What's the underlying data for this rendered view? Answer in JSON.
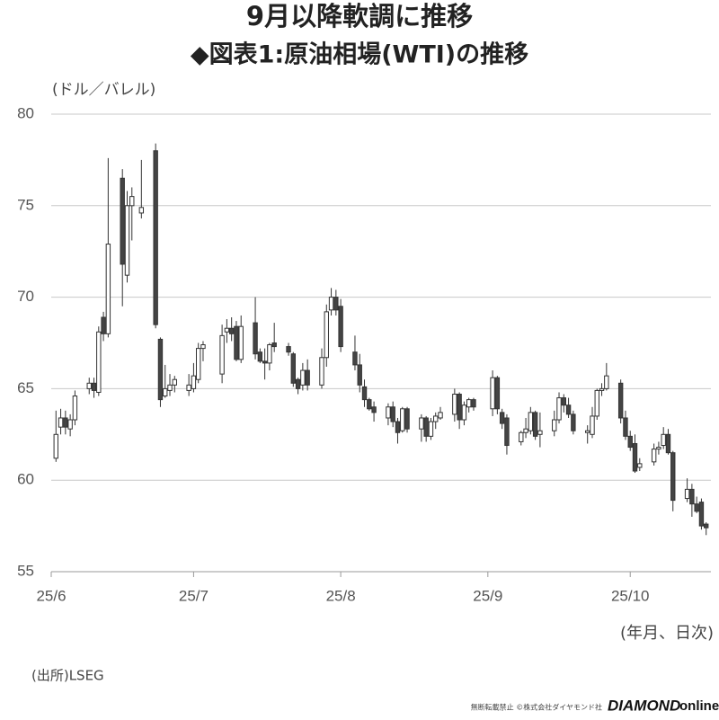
{
  "chart_data": {
    "type": "candlestick",
    "title": "9月以降軟調に推移",
    "subtitle": "◆図表1:原油相場(WTI)の推移",
    "y_label": "(ドル／バレル)",
    "x_label": "(年月、日次)",
    "source": "(出所)LSEG",
    "notice": "無断転載禁止 ©株式会社ダイヤモンド社",
    "brand": [
      "DIAMOND",
      "online"
    ],
    "ylim": [
      55,
      80
    ],
    "yticks": [
      55,
      60,
      65,
      70,
      75,
      80
    ],
    "grid": true,
    "xlim": [
      0,
      139
    ],
    "xticks": [
      {
        "value": 0,
        "label": "25/6"
      },
      {
        "value": 30,
        "label": "25/7"
      },
      {
        "value": 61,
        "label": "25/8"
      },
      {
        "value": 92,
        "label": "25/9"
      },
      {
        "value": 122,
        "label": "25/10"
      }
    ],
    "up_color": "#ffffff",
    "down_color": "#444444",
    "line_color": "#333333",
    "x": [
      1,
      2,
      3,
      4,
      5,
      8,
      9,
      10,
      11,
      12,
      15,
      16,
      17,
      19,
      22,
      23,
      24,
      25,
      26,
      29,
      30,
      31,
      32,
      36,
      37,
      38,
      39,
      40,
      43,
      44,
      45,
      46,
      47,
      50,
      51,
      52,
      53,
      54,
      57,
      58,
      59,
      60,
      61,
      64,
      65,
      66,
      67,
      68,
      71,
      72,
      73,
      74,
      75,
      78,
      79,
      80,
      81,
      82,
      85,
      86,
      87,
      88,
      89,
      93,
      94,
      95,
      96,
      99,
      100,
      101,
      102,
      103,
      106,
      107,
      108,
      109,
      110,
      113,
      114,
      115,
      116,
      117,
      120,
      121,
      122,
      123,
      124,
      127,
      128,
      129,
      130,
      131,
      134,
      135,
      136,
      137,
      138
    ],
    "open": [
      61.2,
      62.9,
      63.4,
      62.8,
      63.3,
      65.0,
      65.3,
      64.8,
      68.9,
      68.0,
      76.5,
      71.2,
      75.0,
      74.6,
      78.0,
      67.7,
      64.6,
      64.9,
      65.2,
      64.9,
      65.0,
      65.5,
      67.2,
      65.8,
      68.1,
      68.3,
      68.4,
      66.6,
      68.6,
      67.0,
      66.5,
      66.4,
      67.5,
      67.3,
      66.9,
      65.5,
      65.2,
      66.0,
      65.2,
      66.7,
      69.3,
      70.0,
      69.5,
      67.0,
      66.3,
      65.1,
      64.4,
      64.0,
      63.4,
      64.0,
      63.2,
      62.7,
      63.9,
      62.8,
      63.4,
      62.4,
      63.2,
      63.4,
      63.6,
      64.7,
      63.3,
      64.0,
      64.4,
      63.9,
      65.6,
      63.7,
      63.4,
      62.1,
      62.6,
      62.7,
      63.7,
      62.5,
      62.7,
      63.3,
      64.5,
      64.1,
      63.6,
      62.6,
      62.5,
      63.5,
      64.9,
      65.0,
      65.3,
      63.4,
      62.4,
      62.0,
      60.7,
      61.0,
      61.7,
      61.9,
      62.5,
      61.5,
      59.0,
      59.5,
      58.7,
      58.8,
      57.6
    ],
    "high": [
      63.8,
      63.9,
      63.8,
      63.6,
      64.9,
      65.6,
      65.6,
      68.4,
      69.2,
      77.6,
      77.0,
      75.8,
      76.0,
      77.5,
      78.4,
      67.8,
      66.3,
      65.8,
      65.7,
      65.8,
      66.4,
      67.5,
      67.6,
      68.5,
      68.8,
      68.9,
      68.7,
      69.0,
      70.0,
      67.2,
      67.2,
      67.5,
      68.6,
      67.5,
      67.0,
      65.6,
      66.4,
      66.6,
      67.2,
      69.6,
      70.5,
      70.4,
      69.9,
      67.9,
      66.9,
      65.5,
      64.5,
      64.3,
      64.2,
      64.3,
      63.4,
      64.0,
      64.0,
      63.6,
      63.5,
      63.4,
      63.7,
      64.0,
      65.0,
      64.8,
      64.3,
      64.5,
      64.5,
      66.0,
      65.7,
      63.9,
      63.6,
      62.7,
      63.4,
      64.0,
      63.8,
      63.7,
      63.8,
      64.8,
      64.7,
      64.5,
      63.8,
      63.0,
      64.0,
      65.0,
      65.3,
      66.4,
      65.5,
      63.8,
      62.7,
      62.5,
      61.2,
      62.0,
      62.1,
      62.9,
      62.8,
      61.6,
      60.1,
      59.8,
      59.1,
      59.0,
      57.7
    ],
    "low": [
      61.0,
      62.5,
      62.5,
      62.4,
      63.0,
      64.7,
      64.5,
      64.6,
      67.6,
      67.8,
      69.5,
      70.8,
      73.1,
      74.3,
      68.3,
      64.0,
      64.5,
      64.6,
      64.8,
      64.6,
      64.8,
      65.3,
      66.5,
      65.3,
      67.5,
      67.6,
      66.5,
      66.4,
      66.6,
      66.4,
      65.5,
      66.0,
      67.0,
      66.8,
      65.1,
      64.7,
      64.9,
      64.9,
      65.0,
      66.2,
      69.0,
      69.0,
      67.0,
      66.0,
      64.8,
      64.0,
      63.8,
      63.2,
      63.0,
      62.9,
      62.0,
      62.6,
      62.6,
      62.1,
      62.1,
      62.2,
      62.8,
      63.3,
      63.2,
      62.8,
      63.0,
      63.7,
      63.8,
      63.5,
      63.6,
      62.8,
      61.4,
      61.9,
      62.3,
      62.5,
      62.2,
      61.8,
      62.4,
      63.1,
      63.7,
      63.4,
      62.5,
      62.0,
      62.3,
      63.3,
      64.6,
      64.9,
      63.1,
      62.2,
      61.6,
      60.4,
      60.5,
      60.8,
      61.4,
      61.7,
      61.4,
      58.3,
      58.8,
      58.0,
      58.2,
      57.3,
      57.0
    ],
    "close": [
      62.5,
      63.4,
      62.9,
      63.3,
      64.6,
      65.3,
      64.9,
      68.1,
      68.0,
      72.9,
      71.8,
      75.0,
      75.5,
      74.9,
      68.5,
      64.4,
      65.0,
      65.2,
      65.5,
      65.2,
      65.7,
      67.2,
      67.4,
      67.9,
      68.3,
      68.0,
      66.6,
      68.4,
      66.9,
      66.5,
      66.4,
      67.4,
      67.3,
      67.0,
      65.3,
      65.0,
      66.0,
      65.2,
      66.7,
      69.2,
      70.0,
      69.3,
      67.3,
      66.3,
      65.2,
      64.4,
      63.9,
      63.7,
      64.0,
      63.2,
      62.6,
      63.9,
      62.8,
      63.4,
      62.4,
      63.2,
      63.5,
      63.7,
      64.7,
      63.3,
      64.1,
      64.4,
      64.0,
      65.6,
      63.9,
      63.1,
      61.9,
      62.6,
      62.8,
      63.7,
      62.4,
      62.7,
      63.3,
      64.5,
      64.1,
      63.6,
      62.7,
      62.7,
      63.5,
      64.9,
      65.0,
      65.7,
      63.4,
      62.4,
      61.8,
      60.5,
      60.9,
      61.7,
      61.8,
      62.5,
      61.5,
      58.9,
      59.5,
      58.7,
      58.3,
      57.5,
      57.4
    ]
  }
}
